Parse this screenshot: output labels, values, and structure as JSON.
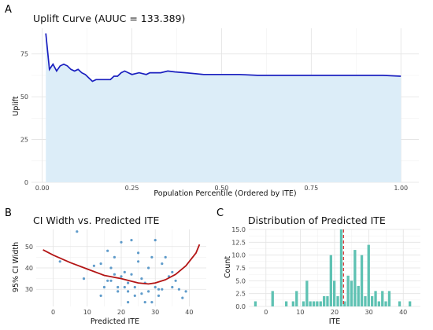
{
  "panels": {
    "a_letter": "A",
    "b_letter": "B",
    "c_letter": "C"
  },
  "chart_data": [
    {
      "id": "uplift",
      "type": "area",
      "title": "Uplift Curve (AUUC = 133.389)",
      "xlabel": "Population Percentile (Ordered by ITE)",
      "ylabel": "Uplift",
      "xlim": [
        0,
        1
      ],
      "ylim": [
        0,
        90
      ],
      "xticks": [
        "0.00",
        "0.25",
        "0.50",
        "0.75",
        "1.00"
      ],
      "xtick_values": [
        0,
        0.25,
        0.5,
        0.75,
        1.0
      ],
      "yticks": [
        "0",
        "25",
        "50",
        "75"
      ],
      "ytick_values": [
        0,
        25,
        50,
        75
      ],
      "line_color": "#1a1fbf",
      "fill_color": "#dcedf8",
      "grid": true,
      "x": [
        0.01,
        0.02,
        0.03,
        0.04,
        0.05,
        0.06,
        0.07,
        0.08,
        0.09,
        0.1,
        0.11,
        0.12,
        0.13,
        0.14,
        0.15,
        0.17,
        0.19,
        0.2,
        0.21,
        0.22,
        0.23,
        0.24,
        0.25,
        0.27,
        0.29,
        0.3,
        0.31,
        0.33,
        0.35,
        0.37,
        0.4,
        0.45,
        0.5,
        0.55,
        0.6,
        0.65,
        0.7,
        0.75,
        0.8,
        0.85,
        0.9,
        0.95,
        1.0
      ],
      "y": [
        87,
        66,
        69,
        65,
        68,
        69,
        68,
        66,
        65,
        66,
        64,
        63,
        61,
        59,
        60,
        60,
        60,
        62,
        62,
        64,
        65,
        64,
        63,
        64,
        63,
        64,
        64,
        64,
        65,
        64.5,
        64,
        63,
        63,
        63,
        62.5,
        62.5,
        62.5,
        62.5,
        62.5,
        62.5,
        62.5,
        62.5,
        62
      ]
    },
    {
      "id": "ci_width",
      "type": "scatter",
      "title": "CI Width vs. Predicted ITE",
      "xlabel": "Predicted ITE",
      "ylabel": "95% CI Width",
      "xlim": [
        -5,
        45
      ],
      "ylim": [
        22,
        58
      ],
      "xticks": [
        "0",
        "10",
        "20",
        "30",
        "40"
      ],
      "xtick_values": [
        0,
        10,
        20,
        30,
        40
      ],
      "yticks": [
        "30",
        "40",
        "50"
      ],
      "ytick_values": [
        30,
        40,
        50
      ],
      "point_color": "#2b7bba",
      "trend_color": "#b31515",
      "grid": true,
      "points": [
        [
          7,
          57
        ],
        [
          2,
          43
        ],
        [
          9,
          35
        ],
        [
          12,
          41
        ],
        [
          14,
          42
        ],
        [
          16,
          48
        ],
        [
          17,
          40
        ],
        [
          17,
          34
        ],
        [
          18,
          45
        ],
        [
          19,
          31
        ],
        [
          19,
          29
        ],
        [
          20,
          52
        ],
        [
          20,
          36
        ],
        [
          21,
          38
        ],
        [
          22,
          33
        ],
        [
          22,
          29
        ],
        [
          23,
          53
        ],
        [
          23,
          37
        ],
        [
          24,
          31
        ],
        [
          25,
          47
        ],
        [
          25,
          43
        ],
        [
          26,
          35
        ],
        [
          26,
          28
        ],
        [
          27,
          24
        ],
        [
          27,
          33
        ],
        [
          28,
          29
        ],
        [
          28,
          40
        ],
        [
          29,
          45
        ],
        [
          29,
          24
        ],
        [
          30,
          53
        ],
        [
          30,
          31
        ],
        [
          31,
          27
        ],
        [
          31,
          30
        ],
        [
          32,
          42
        ],
        [
          32,
          30
        ],
        [
          33,
          45
        ],
        [
          34,
          36
        ],
        [
          35,
          38
        ],
        [
          35,
          31
        ],
        [
          36,
          34
        ],
        [
          37,
          30
        ],
        [
          38,
          26
        ],
        [
          39,
          29
        ],
        [
          14,
          27
        ],
        [
          15,
          31
        ],
        [
          16,
          34
        ],
        [
          22,
          24
        ],
        [
          24,
          27
        ],
        [
          18,
          37
        ],
        [
          21,
          31
        ]
      ],
      "trend_x": [
        -3,
        0,
        5,
        10,
        15,
        20,
        25,
        28,
        30,
        33,
        36,
        39,
        42,
        43
      ],
      "trend_y": [
        48.5,
        46,
        42.5,
        39.5,
        36.5,
        35,
        33,
        32.5,
        33,
        34.5,
        37,
        41,
        47,
        51
      ]
    },
    {
      "id": "ite_hist",
      "type": "bar",
      "title": "Distribution of Predicted ITE",
      "xlabel": "ITE",
      "ylabel": "Count",
      "xlim": [
        -5,
        45
      ],
      "ylim": [
        0,
        15
      ],
      "xticks": [
        "0",
        "10",
        "20",
        "30",
        "40"
      ],
      "xtick_values": [
        0,
        10,
        20,
        30,
        40
      ],
      "yticks": [
        "0.0",
        "2.5",
        "5.0",
        "7.5",
        "10.0",
        "12.5",
        "15.0"
      ],
      "ytick_values": [
        0,
        2.5,
        5,
        7.5,
        10,
        12.5,
        15
      ],
      "bar_color": "#5fc2b3",
      "mean_line_color": "#d62a2a",
      "mean_line_x": 22.6,
      "bin_width": 0.9,
      "bins": [
        [
          -3,
          1
        ],
        [
          2,
          3
        ],
        [
          6,
          1
        ],
        [
          8,
          1
        ],
        [
          9,
          3
        ],
        [
          11,
          1
        ],
        [
          12,
          5
        ],
        [
          13,
          1
        ],
        [
          14,
          1
        ],
        [
          15,
          1
        ],
        [
          16,
          1
        ],
        [
          17,
          2
        ],
        [
          18,
          2
        ],
        [
          19,
          10
        ],
        [
          20,
          5
        ],
        [
          21,
          2
        ],
        [
          22,
          15
        ],
        [
          23,
          1
        ],
        [
          24,
          6
        ],
        [
          25,
          5
        ],
        [
          26,
          11
        ],
        [
          27,
          4
        ],
        [
          28,
          10
        ],
        [
          29,
          2
        ],
        [
          30,
          12
        ],
        [
          31,
          2
        ],
        [
          32,
          3
        ],
        [
          33,
          1
        ],
        [
          34,
          3
        ],
        [
          35,
          1
        ],
        [
          36,
          3
        ],
        [
          39,
          1
        ],
        [
          42,
          1
        ]
      ]
    }
  ]
}
